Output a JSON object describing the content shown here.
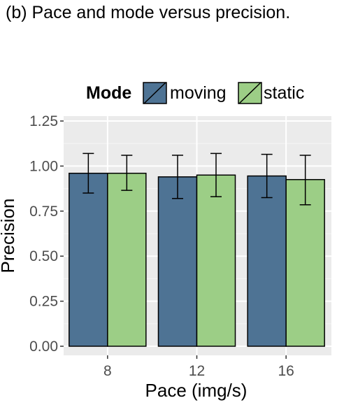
{
  "caption": "(b) Pace and mode versus precision.",
  "chart_data": {
    "type": "bar",
    "title": "",
    "xlabel": "Pace (img/s)",
    "ylabel": "Precision",
    "categories": [
      "8",
      "12",
      "16"
    ],
    "ylim": [
      0,
      1.25
    ],
    "yticks": [
      "0.00",
      "0.25",
      "0.50",
      "0.75",
      "1.00",
      "1.25"
    ],
    "grid": true,
    "legend": {
      "title": "Mode",
      "position": "top"
    },
    "series": [
      {
        "name": "moving",
        "color": "#4e7394",
        "values": [
          0.96,
          0.94,
          0.945
        ],
        "error_low": [
          0.85,
          0.82,
          0.825
        ],
        "error_high": [
          1.07,
          1.06,
          1.065
        ]
      },
      {
        "name": "static",
        "color": "#9cce86",
        "values": [
          0.96,
          0.95,
          0.925
        ],
        "error_low": [
          0.865,
          0.83,
          0.785
        ],
        "error_high": [
          1.06,
          1.07,
          1.06
        ]
      }
    ],
    "panel_background": "#ebebeb",
    "grid_color": "#ffffff"
  }
}
